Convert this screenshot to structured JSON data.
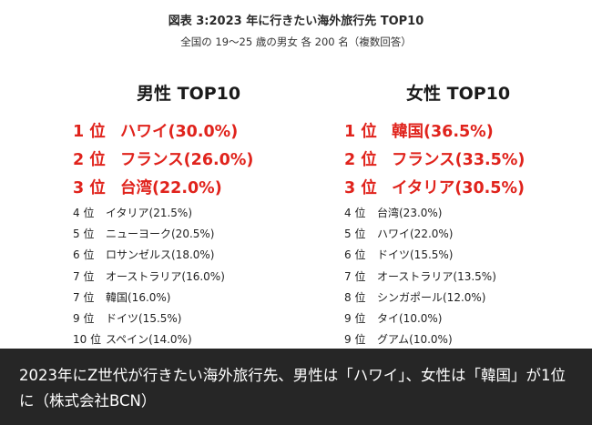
{
  "figure": {
    "title": "図表 3:2023 年に行きたい海外旅行先 TOP10",
    "subtitle": "全国の 19～25 歳の男女 各 200 名（複数回答）"
  },
  "male": {
    "header": "男性 TOP10",
    "top": [
      {
        "rank": "1 位",
        "name": "ハワイ(30.0%)"
      },
      {
        "rank": "2 位",
        "name": "フランス(26.0%)"
      },
      {
        "rank": "3 位",
        "name": "台湾(22.0%)"
      }
    ],
    "rest": [
      {
        "rank": "4 位",
        "name": "イタリア(21.5%)"
      },
      {
        "rank": "5 位",
        "name": "ニューヨーク(20.5%)"
      },
      {
        "rank": "6 位",
        "name": "ロサンゼルス(18.0%)"
      },
      {
        "rank": "7 位",
        "name": "オーストラリア(16.0%)"
      },
      {
        "rank": "7 位",
        "name": "韓国(16.0%)"
      },
      {
        "rank": "9 位",
        "name": "ドイツ(15.5%)"
      },
      {
        "rank": "10 位",
        "name": "スペイン(14.0%)"
      }
    ]
  },
  "female": {
    "header": "女性 TOP10",
    "top": [
      {
        "rank": "1 位",
        "name": "韓国(36.5%)"
      },
      {
        "rank": "2 位",
        "name": "フランス(33.5%)"
      },
      {
        "rank": "3 位",
        "name": "イタリア(30.5%)"
      }
    ],
    "rest": [
      {
        "rank": "4 位",
        "name": "台湾(23.0%)"
      },
      {
        "rank": "5 位",
        "name": "ハワイ(22.0%)"
      },
      {
        "rank": "6 位",
        "name": "ドイツ(15.5%)"
      },
      {
        "rank": "7 位",
        "name": "オーストラリア(13.5%)"
      },
      {
        "rank": "8 位",
        "name": "シンガポール(12.0%)"
      },
      {
        "rank": "9 位",
        "name": "タイ(10.0%)"
      },
      {
        "rank": "9 位",
        "name": "グアム(10.0%)"
      }
    ]
  },
  "caption": "2023年にZ世代が行きたい海外旅行先、男性は「ハワイ」、女性は「韓国」が1位に（株式会社BCN）",
  "colors": {
    "top_rank": "#e0231c",
    "caption_bg": "#262626",
    "caption_text": "#ffffff"
  }
}
